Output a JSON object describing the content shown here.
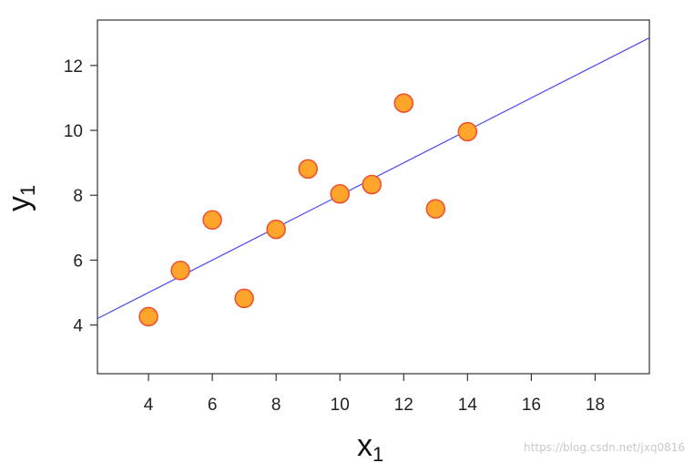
{
  "chart_data": {
    "type": "scatter",
    "x": [
      4,
      5,
      6,
      7,
      8,
      9,
      10,
      11,
      12,
      13,
      14
    ],
    "y": [
      4.26,
      5.68,
      7.24,
      4.82,
      6.95,
      8.81,
      8.04,
      8.33,
      10.84,
      7.58,
      9.96
    ],
    "fit_line": {
      "intercept": 3.0,
      "slope": 0.5
    },
    "xlabel": "x",
    "xlabel_sub": "1",
    "ylabel": "y",
    "ylabel_sub": "1",
    "xlim": [
      2.4,
      19.7
    ],
    "ylim": [
      2.5,
      13.4
    ],
    "xticks": [
      4,
      6,
      8,
      10,
      12,
      14,
      16,
      18
    ],
    "yticks": [
      4,
      6,
      8,
      10,
      12
    ],
    "grid": false,
    "colors": {
      "point_fill": "#FFA52B",
      "point_edge": "#F04C2E",
      "line": "#4A4AF0",
      "frame": "#333333"
    }
  },
  "watermark": "https://blog.csdn.net/jxq0816"
}
